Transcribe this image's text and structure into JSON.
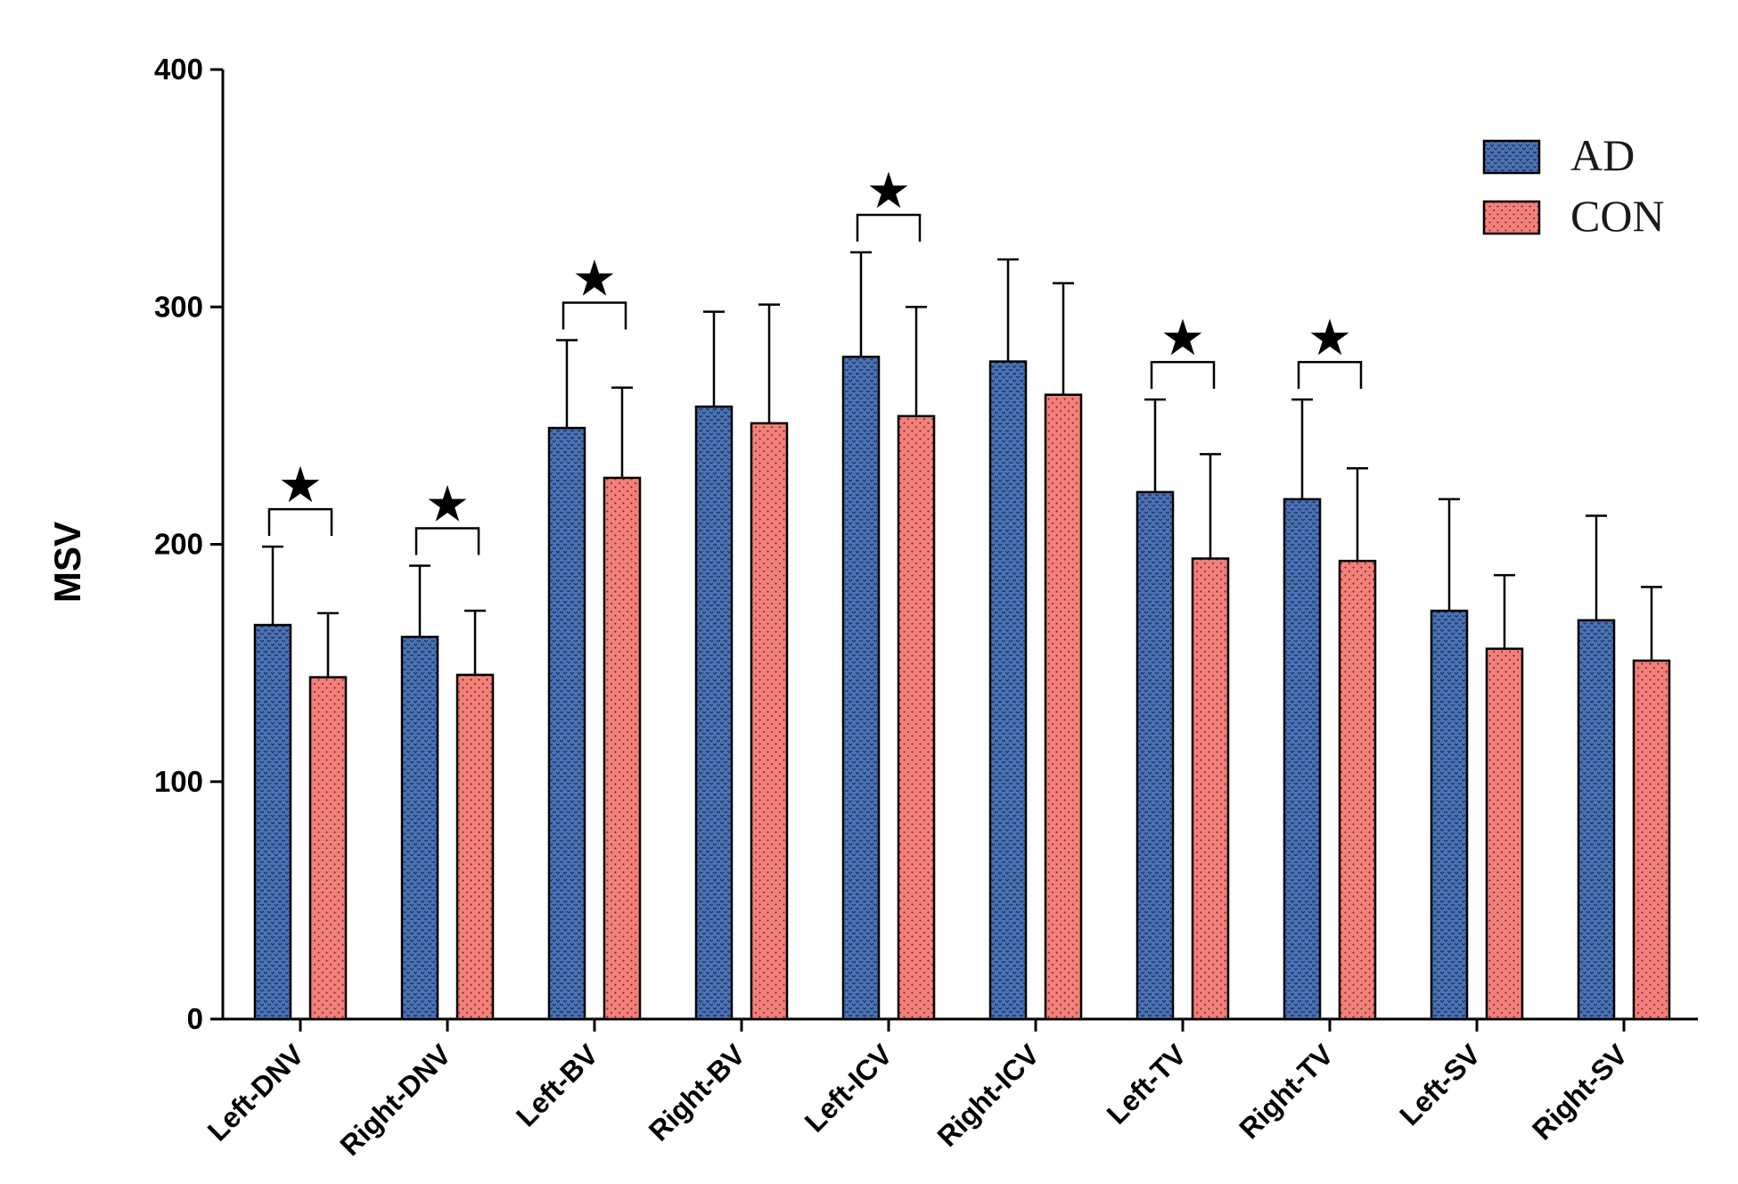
{
  "chart_data": {
    "type": "bar",
    "title": "",
    "xlabel": "",
    "ylabel": "MSV",
    "ylim": [
      0,
      400
    ],
    "yticks": [
      "0",
      "100",
      "200",
      "300",
      "400"
    ],
    "categories": [
      "Left-DNV",
      "Right-DNV",
      "Left-BV",
      "Right-BV",
      "Left-ICV",
      "Right-ICV",
      "Left-TV",
      "Right-TV",
      "Left-SV",
      "Right-SV"
    ],
    "series": [
      {
        "name": "AD",
        "color": "#4a72b6",
        "values": [
          166,
          161,
          249,
          258,
          279,
          277,
          222,
          219,
          172,
          168
        ],
        "errors": [
          33,
          30,
          37,
          40,
          44,
          43,
          39,
          42,
          47,
          44
        ]
      },
      {
        "name": "CON",
        "color": "#f47f79",
        "values": [
          144,
          145,
          228,
          251,
          254,
          263,
          194,
          193,
          156,
          151
        ],
        "errors": [
          27,
          27,
          38,
          50,
          46,
          47,
          44,
          39,
          31,
          31
        ]
      }
    ],
    "significance": [
      {
        "category": "Left-DNV",
        "symbol": "★"
      },
      {
        "category": "Right-DNV",
        "symbol": "★"
      },
      {
        "category": "Left-BV",
        "symbol": "★"
      },
      {
        "category": "Left-ICV",
        "symbol": "★"
      },
      {
        "category": "Left-TV",
        "symbol": "★"
      },
      {
        "category": "Right-TV",
        "symbol": "★"
      }
    ],
    "legend": {
      "position": "top-right",
      "entries": [
        "AD",
        "CON"
      ]
    },
    "grid": false
  }
}
